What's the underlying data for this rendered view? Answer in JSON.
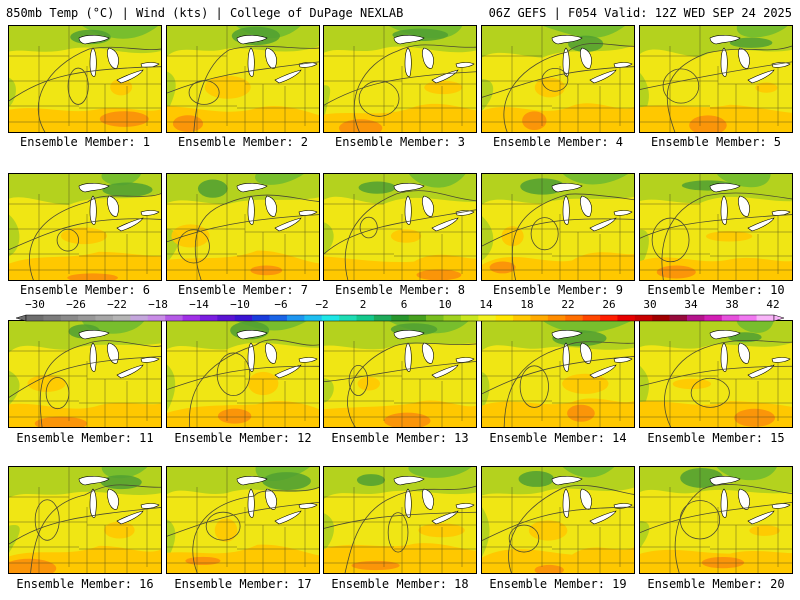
{
  "header": {
    "left": "850mb Temp (°C) | Wind (kts) | College of DuPage NEXLAB",
    "right": "06Z GEFS | F054 Valid: 12Z WED SEP 24 2025"
  },
  "members": [
    {
      "label": "Ensemble Member: 1"
    },
    {
      "label": "Ensemble Member: 2"
    },
    {
      "label": "Ensemble Member: 3"
    },
    {
      "label": "Ensemble Member: 4"
    },
    {
      "label": "Ensemble Member: 5"
    },
    {
      "label": "Ensemble Member: 6"
    },
    {
      "label": "Ensemble Member: 7"
    },
    {
      "label": "Ensemble Member: 8"
    },
    {
      "label": "Ensemble Member: 9"
    },
    {
      "label": "Ensemble Member: 10"
    },
    {
      "label": "Ensemble Member: 11"
    },
    {
      "label": "Ensemble Member: 12"
    },
    {
      "label": "Ensemble Member: 13"
    },
    {
      "label": "Ensemble Member: 14"
    },
    {
      "label": "Ensemble Member: 15"
    },
    {
      "label": "Ensemble Member: 16"
    },
    {
      "label": "Ensemble Member: 17"
    },
    {
      "label": "Ensemble Member: 18"
    },
    {
      "label": "Ensemble Member: 19"
    },
    {
      "label": "Ensemble Member: 20"
    }
  ],
  "colorbar": {
    "ticks": [
      "−30",
      "−26",
      "−22",
      "−18",
      "−14",
      "−10",
      "−6",
      "−2",
      "2",
      "6",
      "10",
      "14",
      "18",
      "22",
      "26",
      "30",
      "34",
      "38",
      "42"
    ],
    "colors": [
      "#6e6e6e",
      "#7c7c7c",
      "#8a8a8a",
      "#989898",
      "#a6a6a6",
      "#b4b4b4",
      "#c4a6dc",
      "#c88ce6",
      "#b45ae6",
      "#a030e6",
      "#7a1ee0",
      "#5a14d2",
      "#3a14d2",
      "#1a3cdc",
      "#1a64e6",
      "#1e96f0",
      "#1ebef0",
      "#1ee6e6",
      "#1edcb4",
      "#14c88c",
      "#1eaa5a",
      "#28962d",
      "#46a01e",
      "#78be1e",
      "#a0d21e",
      "#c8e61e",
      "#f0f01e",
      "#ffe600",
      "#ffc800",
      "#ffaa00",
      "#ff8c00",
      "#ff6e00",
      "#ff4600",
      "#ff1e00",
      "#e60000",
      "#c80000",
      "#a00000",
      "#960a3c",
      "#b4148c",
      "#d21eb4",
      "#e650dc",
      "#f078f0",
      "#f8b4f8"
    ]
  },
  "palette": {
    "warm": "#fa8c0a",
    "mid": "#ffc800",
    "yellow": "#f0e614",
    "olive": "#b4d21e",
    "green": "#78be2d",
    "dark_green": "#50a032"
  }
}
